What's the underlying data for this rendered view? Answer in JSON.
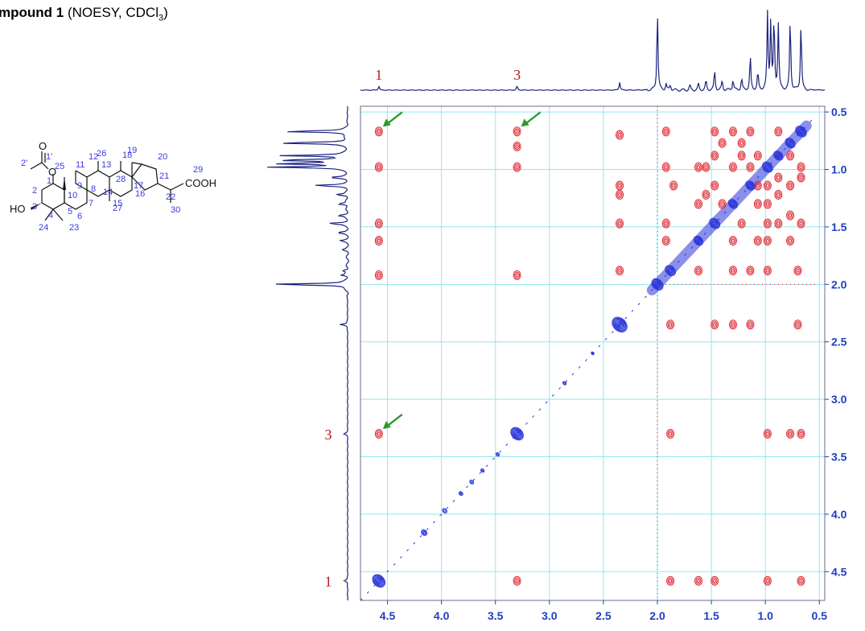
{
  "title": {
    "bold": "mpound 1",
    "text": " (NOESY, CDCl",
    "sub": "3",
    "close": ")"
  },
  "colors": {
    "spectrum_line": "#1a237e",
    "grid": "#8fe8f0",
    "positive_contour": "#2a35d8",
    "negative_contour": "#e0202a",
    "tick_label": "#1f3fbf",
    "peak_label": "#b01818",
    "arrow": "#2e9a2e",
    "atom_number": "#3a3ae0"
  },
  "structure": {
    "groups": {
      "oxygen_acetate": "O",
      "oxygen_ester": "O",
      "hydroxyl": "HO",
      "carboxyl": "COOH"
    },
    "atom_numbers": [
      "1'",
      "2'",
      "1",
      "2",
      "3",
      "4",
      "5",
      "6",
      "7",
      "8",
      "9",
      "10",
      "11",
      "12",
      "13",
      "14",
      "15",
      "16",
      "17",
      "18",
      "19",
      "20",
      "21",
      "22",
      "23",
      "24",
      "25",
      "26",
      "27",
      "28",
      "29",
      "30"
    ]
  },
  "chart_data": {
    "type": "heatmap",
    "subtype": "2D NOESY contour spectrum",
    "x_axis": {
      "range": [
        4.75,
        0.45
      ],
      "ticks": [
        "4.5",
        "4.0",
        "3.5",
        "3.0",
        "2.5",
        "2.0",
        "1.5",
        "1.0",
        "0.5"
      ],
      "tick_values": [
        4.5,
        4.0,
        3.5,
        3.0,
        2.5,
        2.0,
        1.5,
        1.0,
        0.5
      ],
      "reversed": true
    },
    "y_axis": {
      "range": [
        0.45,
        4.75
      ],
      "ticks": [
        "0.5",
        "1.0",
        "1.5",
        "2.0",
        "2.5",
        "3.0",
        "3.5",
        "4.0",
        "4.5"
      ],
      "tick_values": [
        0.5,
        1.0,
        1.5,
        2.0,
        2.5,
        3.0,
        3.5,
        4.0,
        4.5
      ],
      "position": "right"
    },
    "grid": true,
    "peak_labels": [
      {
        "label": "1",
        "shift": 4.58
      },
      {
        "label": "3",
        "shift": 3.3
      }
    ],
    "projection_peaks": [
      {
        "shift": 4.58,
        "height": 0.05
      },
      {
        "shift": 3.3,
        "height": 0.05
      },
      {
        "shift": 2.35,
        "height": 0.1
      },
      {
        "shift": 2.0,
        "height": 1.0
      },
      {
        "shift": 1.92,
        "height": 0.08
      },
      {
        "shift": 1.88,
        "height": 0.07
      },
      {
        "shift": 1.7,
        "height": 0.06
      },
      {
        "shift": 1.62,
        "height": 0.08
      },
      {
        "shift": 1.55,
        "height": 0.12
      },
      {
        "shift": 1.47,
        "height": 0.25
      },
      {
        "shift": 1.4,
        "height": 0.12
      },
      {
        "shift": 1.3,
        "height": 0.14
      },
      {
        "shift": 1.22,
        "height": 0.15
      },
      {
        "shift": 1.14,
        "height": 0.42
      },
      {
        "shift": 1.07,
        "height": 0.22
      },
      {
        "shift": 0.98,
        "height": 0.95
      },
      {
        "shift": 0.95,
        "height": 0.88
      },
      {
        "shift": 0.92,
        "height": 0.9
      },
      {
        "shift": 0.88,
        "height": 0.82
      },
      {
        "shift": 0.77,
        "height": 0.92
      },
      {
        "shift": 0.67,
        "height": 0.85
      }
    ],
    "diagonal_peaks": [
      {
        "shift": 4.58,
        "size": 2.2
      },
      {
        "shift": 4.16,
        "size": 1.0
      },
      {
        "shift": 3.97,
        "size": 0.8
      },
      {
        "shift": 3.82,
        "size": 0.7
      },
      {
        "shift": 3.72,
        "size": 0.7
      },
      {
        "shift": 3.62,
        "size": 0.6
      },
      {
        "shift": 3.48,
        "size": 0.6
      },
      {
        "shift": 3.3,
        "size": 2.2
      },
      {
        "shift": 2.86,
        "size": 0.6
      },
      {
        "shift": 2.6,
        "size": 0.5
      },
      {
        "shift": 2.35,
        "size": 2.6
      },
      {
        "shift": 2.0,
        "size": 2.0
      },
      {
        "shift": 1.88,
        "size": 1.8
      },
      {
        "shift": 1.62,
        "size": 1.6
      },
      {
        "shift": 1.47,
        "size": 1.8
      },
      {
        "shift": 1.3,
        "size": 1.6
      },
      {
        "shift": 1.14,
        "size": 1.6
      },
      {
        "shift": 0.98,
        "size": 1.8
      },
      {
        "shift": 0.88,
        "size": 1.6
      },
      {
        "shift": 0.77,
        "size": 1.7
      },
      {
        "shift": 0.67,
        "size": 1.9
      }
    ],
    "cross_peaks": [
      {
        "x": 4.58,
        "y": 0.67
      },
      {
        "x": 4.58,
        "y": 0.98
      },
      {
        "x": 4.58,
        "y": 1.47
      },
      {
        "x": 4.58,
        "y": 1.62
      },
      {
        "x": 4.58,
        "y": 1.92
      },
      {
        "x": 4.58,
        "y": 3.3
      },
      {
        "x": 3.3,
        "y": 0.67
      },
      {
        "x": 3.3,
        "y": 0.98
      },
      {
        "x": 3.3,
        "y": 1.92
      },
      {
        "x": 3.3,
        "y": 4.58
      },
      {
        "x": 3.3,
        "y": 0.8
      },
      {
        "x": 2.35,
        "y": 0.7
      },
      {
        "x": 2.35,
        "y": 1.14
      },
      {
        "x": 2.35,
        "y": 1.22
      },
      {
        "x": 2.35,
        "y": 1.47
      },
      {
        "x": 2.35,
        "y": 1.88
      },
      {
        "x": 1.88,
        "y": 3.3
      },
      {
        "x": 1.88,
        "y": 4.58
      },
      {
        "x": 1.88,
        "y": 2.35
      },
      {
        "x": 1.62,
        "y": 4.58
      },
      {
        "x": 1.47,
        "y": 4.58
      },
      {
        "x": 0.98,
        "y": 4.58
      },
      {
        "x": 0.67,
        "y": 4.58
      },
      {
        "x": 0.98,
        "y": 3.3
      },
      {
        "x": 0.77,
        "y": 3.3
      },
      {
        "x": 0.67,
        "y": 3.3
      },
      {
        "x": 1.47,
        "y": 2.35
      },
      {
        "x": 1.3,
        "y": 2.35
      },
      {
        "x": 1.14,
        "y": 2.35
      },
      {
        "x": 0.7,
        "y": 2.35
      },
      {
        "x": 1.62,
        "y": 1.88
      },
      {
        "x": 1.3,
        "y": 1.88
      },
      {
        "x": 1.14,
        "y": 1.88
      },
      {
        "x": 0.98,
        "y": 1.88
      },
      {
        "x": 0.7,
        "y": 1.88
      },
      {
        "x": 1.92,
        "y": 0.67
      },
      {
        "x": 1.92,
        "y": 0.98
      },
      {
        "x": 1.92,
        "y": 1.47
      },
      {
        "x": 1.92,
        "y": 1.62
      },
      {
        "x": 1.85,
        "y": 1.14
      },
      {
        "x": 1.47,
        "y": 0.67
      },
      {
        "x": 1.47,
        "y": 0.88
      },
      {
        "x": 1.4,
        "y": 0.77
      },
      {
        "x": 1.3,
        "y": 0.67
      },
      {
        "x": 1.22,
        "y": 0.88
      },
      {
        "x": 1.14,
        "y": 0.67
      },
      {
        "x": 1.07,
        "y": 0.88
      },
      {
        "x": 0.98,
        "y": 1.14
      },
      {
        "x": 0.98,
        "y": 1.3
      },
      {
        "x": 0.98,
        "y": 1.47
      },
      {
        "x": 0.88,
        "y": 1.22
      },
      {
        "x": 0.88,
        "y": 1.47
      },
      {
        "x": 0.77,
        "y": 1.14
      },
      {
        "x": 0.77,
        "y": 1.4
      },
      {
        "x": 0.67,
        "y": 1.07
      },
      {
        "x": 0.67,
        "y": 1.47
      },
      {
        "x": 0.67,
        "y": 0.98
      },
      {
        "x": 0.88,
        "y": 0.67
      },
      {
        "x": 1.14,
        "y": 0.98
      },
      {
        "x": 1.3,
        "y": 0.98
      },
      {
        "x": 1.47,
        "y": 1.14
      },
      {
        "x": 1.4,
        "y": 1.3
      },
      {
        "x": 1.62,
        "y": 0.98
      },
      {
        "x": 1.62,
        "y": 1.3
      },
      {
        "x": 1.3,
        "y": 1.62
      },
      {
        "x": 1.07,
        "y": 1.62
      },
      {
        "x": 0.98,
        "y": 1.62
      },
      {
        "x": 0.77,
        "y": 1.62
      },
      {
        "x": 1.22,
        "y": 1.47
      },
      {
        "x": 1.07,
        "y": 1.3
      },
      {
        "x": 0.88,
        "y": 1.07
      },
      {
        "x": 0.77,
        "y": 0.88
      },
      {
        "x": 1.22,
        "y": 0.77
      },
      {
        "x": 1.55,
        "y": 0.98
      },
      {
        "x": 1.55,
        "y": 1.22
      },
      {
        "x": 1.07,
        "y": 1.14
      }
    ],
    "arrows": [
      {
        "x": 4.58,
        "y": 0.67
      },
      {
        "x": 3.3,
        "y": 0.67
      },
      {
        "x": 4.58,
        "y": 3.3
      }
    ]
  }
}
